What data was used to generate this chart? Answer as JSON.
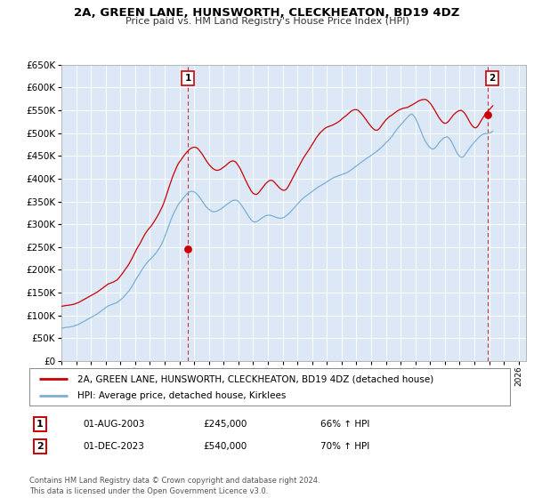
{
  "title1": "2A, GREEN LANE, HUNSWORTH, CLECKHEATON, BD19 4DZ",
  "title2": "Price paid vs. HM Land Registry's House Price Index (HPI)",
  "ylim": [
    0,
    650000
  ],
  "yticks": [
    0,
    50000,
    100000,
    150000,
    200000,
    250000,
    300000,
    350000,
    400000,
    450000,
    500000,
    550000,
    600000,
    650000
  ],
  "xlim_start": 1995.0,
  "xlim_end": 2026.5,
  "sale1_date": 2003.58,
  "sale1_price": 245000,
  "sale1_label": "1",
  "sale2_date": 2023.92,
  "sale2_price": 540000,
  "sale2_label": "2",
  "legend_line1": "2A, GREEN LANE, HUNSWORTH, CLECKHEATON, BD19 4DZ (detached house)",
  "legend_line2": "HPI: Average price, detached house, Kirklees",
  "table_row1_num": "1",
  "table_row1_date": "01-AUG-2003",
  "table_row1_price": "£245,000",
  "table_row1_hpi": "66% ↑ HPI",
  "table_row2_num": "2",
  "table_row2_date": "01-DEC-2023",
  "table_row2_price": "£540,000",
  "table_row2_hpi": "70% ↑ HPI",
  "footnote": "Contains HM Land Registry data © Crown copyright and database right 2024.\nThis data is licensed under the Open Government Licence v3.0.",
  "line_color_red": "#cc0000",
  "line_color_blue": "#7bafd4",
  "bg_color": "#dce8f5",
  "grid_color": "#ffffff",
  "hpi_months": [
    1995.0,
    1995.083,
    1995.167,
    1995.25,
    1995.333,
    1995.417,
    1995.5,
    1995.583,
    1995.667,
    1995.75,
    1995.833,
    1995.917,
    1996.0,
    1996.083,
    1996.167,
    1996.25,
    1996.333,
    1996.417,
    1996.5,
    1996.583,
    1996.667,
    1996.75,
    1996.833,
    1996.917,
    1997.0,
    1997.083,
    1997.167,
    1997.25,
    1997.333,
    1997.417,
    1997.5,
    1997.583,
    1997.667,
    1997.75,
    1997.833,
    1997.917,
    1998.0,
    1998.083,
    1998.167,
    1998.25,
    1998.333,
    1998.417,
    1998.5,
    1998.583,
    1998.667,
    1998.75,
    1998.833,
    1998.917,
    1999.0,
    1999.083,
    1999.167,
    1999.25,
    1999.333,
    1999.417,
    1999.5,
    1999.583,
    1999.667,
    1999.75,
    1999.833,
    1999.917,
    2000.0,
    2000.083,
    2000.167,
    2000.25,
    2000.333,
    2000.417,
    2000.5,
    2000.583,
    2000.667,
    2000.75,
    2000.833,
    2000.917,
    2001.0,
    2001.083,
    2001.167,
    2001.25,
    2001.333,
    2001.417,
    2001.5,
    2001.583,
    2001.667,
    2001.75,
    2001.833,
    2001.917,
    2002.0,
    2002.083,
    2002.167,
    2002.25,
    2002.333,
    2002.417,
    2002.5,
    2002.583,
    2002.667,
    2002.75,
    2002.833,
    2002.917,
    2003.0,
    2003.083,
    2003.167,
    2003.25,
    2003.333,
    2003.417,
    2003.5,
    2003.583,
    2003.667,
    2003.75,
    2003.833,
    2003.917,
    2004.0,
    2004.083,
    2004.167,
    2004.25,
    2004.333,
    2004.417,
    2004.5,
    2004.583,
    2004.667,
    2004.75,
    2004.833,
    2004.917,
    2005.0,
    2005.083,
    2005.167,
    2005.25,
    2005.333,
    2005.417,
    2005.5,
    2005.583,
    2005.667,
    2005.75,
    2005.833,
    2005.917,
    2006.0,
    2006.083,
    2006.167,
    2006.25,
    2006.333,
    2006.417,
    2006.5,
    2006.583,
    2006.667,
    2006.75,
    2006.833,
    2006.917,
    2007.0,
    2007.083,
    2007.167,
    2007.25,
    2007.333,
    2007.417,
    2007.5,
    2007.583,
    2007.667,
    2007.75,
    2007.833,
    2007.917,
    2008.0,
    2008.083,
    2008.167,
    2008.25,
    2008.333,
    2008.417,
    2008.5,
    2008.583,
    2008.667,
    2008.75,
    2008.833,
    2008.917,
    2009.0,
    2009.083,
    2009.167,
    2009.25,
    2009.333,
    2009.417,
    2009.5,
    2009.583,
    2009.667,
    2009.75,
    2009.833,
    2009.917,
    2010.0,
    2010.083,
    2010.167,
    2010.25,
    2010.333,
    2010.417,
    2010.5,
    2010.583,
    2010.667,
    2010.75,
    2010.833,
    2010.917,
    2011.0,
    2011.083,
    2011.167,
    2011.25,
    2011.333,
    2011.417,
    2011.5,
    2011.583,
    2011.667,
    2011.75,
    2011.833,
    2011.917,
    2012.0,
    2012.083,
    2012.167,
    2012.25,
    2012.333,
    2012.417,
    2012.5,
    2012.583,
    2012.667,
    2012.75,
    2012.833,
    2012.917,
    2013.0,
    2013.083,
    2013.167,
    2013.25,
    2013.333,
    2013.417,
    2013.5,
    2013.583,
    2013.667,
    2013.75,
    2013.833,
    2013.917,
    2014.0,
    2014.083,
    2014.167,
    2014.25,
    2014.333,
    2014.417,
    2014.5,
    2014.583,
    2014.667,
    2014.75,
    2014.833,
    2014.917,
    2015.0,
    2015.083,
    2015.167,
    2015.25,
    2015.333,
    2015.417,
    2015.5,
    2015.583,
    2015.667,
    2015.75,
    2015.833,
    2015.917,
    2016.0,
    2016.083,
    2016.167,
    2016.25,
    2016.333,
    2016.417,
    2016.5,
    2016.583,
    2016.667,
    2016.75,
    2016.833,
    2016.917,
    2017.0,
    2017.083,
    2017.167,
    2017.25,
    2017.333,
    2017.417,
    2017.5,
    2017.583,
    2017.667,
    2017.75,
    2017.833,
    2017.917,
    2018.0,
    2018.083,
    2018.167,
    2018.25,
    2018.333,
    2018.417,
    2018.5,
    2018.583,
    2018.667,
    2018.75,
    2018.833,
    2018.917,
    2019.0,
    2019.083,
    2019.167,
    2019.25,
    2019.333,
    2019.417,
    2019.5,
    2019.583,
    2019.667,
    2019.75,
    2019.833,
    2019.917,
    2020.0,
    2020.083,
    2020.167,
    2020.25,
    2020.333,
    2020.417,
    2020.5,
    2020.583,
    2020.667,
    2020.75,
    2020.833,
    2020.917,
    2021.0,
    2021.083,
    2021.167,
    2021.25,
    2021.333,
    2021.417,
    2021.5,
    2021.583,
    2021.667,
    2021.75,
    2021.833,
    2021.917,
    2022.0,
    2022.083,
    2022.167,
    2022.25,
    2022.333,
    2022.417,
    2022.5,
    2022.583,
    2022.667,
    2022.75,
    2022.833,
    2022.917,
    2023.0,
    2023.083,
    2023.167,
    2023.25,
    2023.333,
    2023.417,
    2023.5,
    2023.583,
    2023.667,
    2023.75,
    2023.833,
    2023.917,
    2024.0,
    2024.083,
    2024.167,
    2024.25
  ],
  "hpi_values": [
    72000,
    72500,
    73000,
    73500,
    74000,
    74200,
    74500,
    75000,
    75500,
    76000,
    76500,
    77500,
    78500,
    79500,
    80500,
    82000,
    83500,
    85000,
    86500,
    88000,
    89500,
    91000,
    92500,
    94000,
    95500,
    97000,
    98500,
    100000,
    101500,
    103000,
    105000,
    107000,
    109000,
    111000,
    113000,
    115000,
    117000,
    119000,
    121000,
    122000,
    123000,
    124000,
    125000,
    126000,
    127000,
    128000,
    130000,
    132000,
    134000,
    136500,
    139000,
    142000,
    145000,
    148000,
    151000,
    154000,
    158000,
    162000,
    166500,
    171000,
    176000,
    181000,
    185000,
    189000,
    193000,
    198000,
    202000,
    206000,
    210000,
    213500,
    217000,
    220000,
    222500,
    225000,
    228000,
    231000,
    234000,
    237000,
    241000,
    245000,
    249000,
    254000,
    259000,
    265000,
    272000,
    279000,
    286500,
    294000,
    301500,
    309000,
    315500,
    322000,
    327500,
    333000,
    338000,
    343000,
    347000,
    350000,
    353500,
    357000,
    360000,
    363500,
    366500,
    369000,
    371000,
    372000,
    372500,
    372000,
    371000,
    369500,
    367000,
    364000,
    360500,
    357000,
    353000,
    349000,
    345000,
    341000,
    338000,
    335000,
    333000,
    331000,
    329000,
    328000,
    327500,
    328000,
    328500,
    329500,
    331000,
    332500,
    334000,
    336000,
    338000,
    340500,
    342500,
    344500,
    346000,
    348000,
    350000,
    351500,
    352500,
    353000,
    353000,
    352000,
    350000,
    347000,
    344000,
    340000,
    336000,
    331500,
    327000,
    323000,
    319000,
    315000,
    311000,
    308000,
    306000,
    305000,
    305000,
    306000,
    307500,
    309500,
    311500,
    313500,
    315000,
    317000,
    318500,
    319500,
    320000,
    320000,
    320000,
    319000,
    318000,
    317000,
    316000,
    315000,
    314000,
    313500,
    313500,
    313500,
    314000,
    315000,
    317000,
    319000,
    321000,
    323500,
    326000,
    329000,
    332000,
    335000,
    338000,
    341000,
    344000,
    347000,
    350000,
    353000,
    355500,
    358000,
    360000,
    362000,
    364000,
    366000,
    368000,
    370000,
    372000,
    374000,
    376000,
    378000,
    380000,
    382000,
    383500,
    385000,
    386500,
    388000,
    389500,
    391000,
    393000,
    395000,
    397000,
    398500,
    400000,
    401500,
    403000,
    404000,
    405000,
    406000,
    407000,
    408000,
    409000,
    410000,
    411000,
    412000,
    413000,
    414500,
    416000,
    418000,
    420000,
    422000,
    424000,
    426000,
    428000,
    430000,
    432000,
    434000,
    436000,
    438000,
    440000,
    442000,
    444000,
    446000,
    447500,
    449000,
    451000,
    453000,
    455000,
    457000,
    459000,
    461000,
    463000,
    465500,
    468000,
    470500,
    473000,
    476000,
    479000,
    481500,
    484000,
    487000,
    490000,
    493000,
    497000,
    501000,
    505000,
    508500,
    512000,
    515000,
    518000,
    521000,
    524000,
    527000,
    530000,
    533000,
    536000,
    539000,
    540500,
    542000,
    540000,
    537000,
    533000,
    527500,
    521500,
    515000,
    508000,
    501000,
    494500,
    488500,
    483000,
    478500,
    474500,
    471000,
    468000,
    466000,
    465000,
    465500,
    467500,
    470500,
    474000,
    478000,
    481500,
    484500,
    487000,
    489000,
    490500,
    491500,
    492000,
    490000,
    487000,
    483000,
    478000,
    472500,
    466500,
    461000,
    456000,
    452000,
    449000,
    447500,
    447000,
    448500,
    451000,
    455000,
    459000,
    463000,
    467000,
    470500,
    474000,
    477000,
    480000,
    483000,
    486000,
    489000,
    492000,
    494000,
    496000,
    497500,
    498500,
    499000,
    499000,
    499500,
    500000,
    501000,
    502500,
    504000,
    505500
  ],
  "red_months": [
    1995.0,
    1995.083,
    1995.167,
    1995.25,
    1995.333,
    1995.417,
    1995.5,
    1995.583,
    1995.667,
    1995.75,
    1995.833,
    1995.917,
    1996.0,
    1996.083,
    1996.167,
    1996.25,
    1996.333,
    1996.417,
    1996.5,
    1996.583,
    1996.667,
    1996.75,
    1996.833,
    1996.917,
    1997.0,
    1997.083,
    1997.167,
    1997.25,
    1997.333,
    1997.417,
    1997.5,
    1997.583,
    1997.667,
    1997.75,
    1997.833,
    1997.917,
    1998.0,
    1998.083,
    1998.167,
    1998.25,
    1998.333,
    1998.417,
    1998.5,
    1998.583,
    1998.667,
    1998.75,
    1998.833,
    1998.917,
    1999.0,
    1999.083,
    1999.167,
    1999.25,
    1999.333,
    1999.417,
    1999.5,
    1999.583,
    1999.667,
    1999.75,
    1999.833,
    1999.917,
    2000.0,
    2000.083,
    2000.167,
    2000.25,
    2000.333,
    2000.417,
    2000.5,
    2000.583,
    2000.667,
    2000.75,
    2000.833,
    2000.917,
    2001.0,
    2001.083,
    2001.167,
    2001.25,
    2001.333,
    2001.417,
    2001.5,
    2001.583,
    2001.667,
    2001.75,
    2001.833,
    2001.917,
    2002.0,
    2002.083,
    2002.167,
    2002.25,
    2002.333,
    2002.417,
    2002.5,
    2002.583,
    2002.667,
    2002.75,
    2002.833,
    2002.917,
    2003.0,
    2003.083,
    2003.167,
    2003.25,
    2003.333,
    2003.417,
    2003.5,
    2003.583,
    2003.667,
    2003.75,
    2003.833,
    2003.917,
    2004.0,
    2004.083,
    2004.167,
    2004.25,
    2004.333,
    2004.417,
    2004.5,
    2004.583,
    2004.667,
    2004.75,
    2004.833,
    2004.917,
    2005.0,
    2005.083,
    2005.167,
    2005.25,
    2005.333,
    2005.417,
    2005.5,
    2005.583,
    2005.667,
    2005.75,
    2005.833,
    2005.917,
    2006.0,
    2006.083,
    2006.167,
    2006.25,
    2006.333,
    2006.417,
    2006.5,
    2006.583,
    2006.667,
    2006.75,
    2006.833,
    2006.917,
    2007.0,
    2007.083,
    2007.167,
    2007.25,
    2007.333,
    2007.417,
    2007.5,
    2007.583,
    2007.667,
    2007.75,
    2007.833,
    2007.917,
    2008.0,
    2008.083,
    2008.167,
    2008.25,
    2008.333,
    2008.417,
    2008.5,
    2008.583,
    2008.667,
    2008.75,
    2008.833,
    2008.917,
    2009.0,
    2009.083,
    2009.167,
    2009.25,
    2009.333,
    2009.417,
    2009.5,
    2009.583,
    2009.667,
    2009.75,
    2009.833,
    2009.917,
    2010.0,
    2010.083,
    2010.167,
    2010.25,
    2010.333,
    2010.417,
    2010.5,
    2010.583,
    2010.667,
    2010.75,
    2010.833,
    2010.917,
    2011.0,
    2011.083,
    2011.167,
    2011.25,
    2011.333,
    2011.417,
    2011.5,
    2011.583,
    2011.667,
    2011.75,
    2011.833,
    2011.917,
    2012.0,
    2012.083,
    2012.167,
    2012.25,
    2012.333,
    2012.417,
    2012.5,
    2012.583,
    2012.667,
    2012.75,
    2012.833,
    2012.917,
    2013.0,
    2013.083,
    2013.167,
    2013.25,
    2013.333,
    2013.417,
    2013.5,
    2013.583,
    2013.667,
    2013.75,
    2013.833,
    2013.917,
    2014.0,
    2014.083,
    2014.167,
    2014.25,
    2014.333,
    2014.417,
    2014.5,
    2014.583,
    2014.667,
    2014.75,
    2014.833,
    2014.917,
    2015.0,
    2015.083,
    2015.167,
    2015.25,
    2015.333,
    2015.417,
    2015.5,
    2015.583,
    2015.667,
    2015.75,
    2015.833,
    2015.917,
    2016.0,
    2016.083,
    2016.167,
    2016.25,
    2016.333,
    2016.417,
    2016.5,
    2016.583,
    2016.667,
    2016.75,
    2016.833,
    2016.917,
    2017.0,
    2017.083,
    2017.167,
    2017.25,
    2017.333,
    2017.417,
    2017.5,
    2017.583,
    2017.667,
    2017.75,
    2017.833,
    2017.917,
    2018.0,
    2018.083,
    2018.167,
    2018.25,
    2018.333,
    2018.417,
    2018.5,
    2018.583,
    2018.667,
    2018.75,
    2018.833,
    2018.917,
    2019.0,
    2019.083,
    2019.167,
    2019.25,
    2019.333,
    2019.417,
    2019.5,
    2019.583,
    2019.667,
    2019.75,
    2019.833,
    2019.917,
    2020.0,
    2020.083,
    2020.167,
    2020.25,
    2020.333,
    2020.417,
    2020.5,
    2020.583,
    2020.667,
    2020.75,
    2020.833,
    2020.917,
    2021.0,
    2021.083,
    2021.167,
    2021.25,
    2021.333,
    2021.417,
    2021.5,
    2021.583,
    2021.667,
    2021.75,
    2021.833,
    2021.917,
    2022.0,
    2022.083,
    2022.167,
    2022.25,
    2022.333,
    2022.417,
    2022.5,
    2022.583,
    2022.667,
    2022.75,
    2022.833,
    2022.917,
    2023.0,
    2023.083,
    2023.167,
    2023.25,
    2023.333,
    2023.417,
    2023.5,
    2023.583,
    2023.667,
    2023.75,
    2023.833,
    2023.917,
    2024.0,
    2024.083,
    2024.167,
    2024.25
  ],
  "red_values": [
    120000,
    120500,
    121000,
    121500,
    122000,
    122200,
    122500,
    123000,
    123500,
    124000,
    124500,
    125500,
    126500,
    127500,
    128500,
    130000,
    131500,
    133000,
    134500,
    136000,
    137500,
    139000,
    140500,
    142000,
    143500,
    145000,
    146500,
    148000,
    149500,
    151000,
    153000,
    155000,
    157000,
    159000,
    161000,
    163000,
    165000,
    167000,
    169000,
    170000,
    171000,
    172000,
    173000,
    174500,
    176000,
    177500,
    180000,
    183000,
    186500,
    190000,
    193500,
    197500,
    201500,
    205000,
    209000,
    213000,
    218000,
    223000,
    228000,
    233500,
    239000,
    244500,
    249000,
    253500,
    258000,
    263500,
    268500,
    273500,
    278500,
    282500,
    286500,
    290000,
    293000,
    296000,
    300000,
    304000,
    308500,
    312500,
    317500,
    322000,
    327500,
    332500,
    338000,
    344500,
    352000,
    360000,
    368500,
    377000,
    385000,
    393000,
    400500,
    408000,
    414500,
    421000,
    427000,
    432500,
    436500,
    440000,
    444000,
    448000,
    451500,
    455000,
    458000,
    461000,
    463500,
    466000,
    467500,
    468500,
    469000,
    469000,
    468000,
    466000,
    463000,
    459500,
    456000,
    452000,
    447500,
    443000,
    439000,
    435000,
    431500,
    428500,
    425500,
    423000,
    421000,
    419500,
    418500,
    418500,
    419000,
    420000,
    421500,
    423500,
    425500,
    427500,
    429500,
    432000,
    434500,
    436500,
    438000,
    439000,
    439000,
    438000,
    436000,
    432500,
    428500,
    424000,
    419000,
    413500,
    407500,
    401500,
    396000,
    390500,
    385000,
    380000,
    375000,
    371000,
    368000,
    366500,
    365500,
    366000,
    368000,
    371000,
    374500,
    378000,
    381500,
    385000,
    388500,
    391000,
    393500,
    395500,
    396500,
    396500,
    395500,
    393000,
    390000,
    387000,
    384000,
    381000,
    378500,
    376500,
    375000,
    374500,
    375000,
    377000,
    380500,
    385000,
    390000,
    395000,
    400000,
    405500,
    411000,
    416000,
    421000,
    426000,
    431000,
    436000,
    441000,
    446000,
    450000,
    454000,
    458000,
    462000,
    466000,
    470500,
    475000,
    479500,
    484000,
    488000,
    492000,
    495500,
    499000,
    502000,
    504500,
    507000,
    509500,
    511500,
    513000,
    514000,
    515000,
    516000,
    517000,
    518000,
    519500,
    521000,
    522500,
    524000,
    526000,
    528000,
    530500,
    533000,
    535000,
    537000,
    539000,
    541500,
    544000,
    546500,
    548500,
    550000,
    551000,
    551500,
    551500,
    550500,
    548500,
    546000,
    543000,
    540000,
    536500,
    532500,
    529000,
    525000,
    521500,
    518000,
    514500,
    511500,
    509000,
    507000,
    506500,
    506500,
    508000,
    511000,
    514500,
    518500,
    522000,
    525500,
    529000,
    531500,
    534000,
    536500,
    538000,
    540000,
    542000,
    544000,
    546000,
    548000,
    549500,
    551000,
    552500,
    553500,
    554500,
    555000,
    555500,
    556000,
    557000,
    558500,
    560000,
    561500,
    563000,
    564500,
    566000,
    568000,
    569500,
    571000,
    572000,
    573000,
    573500,
    574000,
    574000,
    573000,
    571000,
    568500,
    565500,
    562000,
    558000,
    553500,
    549000,
    544000,
    539500,
    535000,
    531000,
    527500,
    524500,
    522500,
    521500,
    522000,
    523500,
    526000,
    529500,
    533000,
    536500,
    540000,
    542500,
    545000,
    547000,
    548500,
    549500,
    550000,
    549000,
    547000,
    544000,
    540000,
    535500,
    530500,
    525500,
    521000,
    517000,
    514000,
    512000,
    511500,
    513000,
    516000,
    520500,
    525000,
    529500,
    534000,
    538000,
    542000,
    545500,
    548500,
    551000,
    554000,
    557000,
    560000,
    563000,
    566000,
    568000,
    570000,
    571500,
    573000,
    574000,
    574500,
    575000,
    576000,
    577500,
    579000,
    580500
  ]
}
